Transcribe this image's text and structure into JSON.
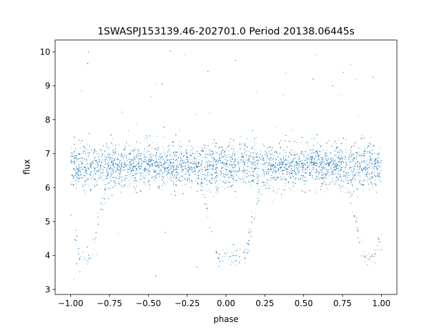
{
  "chart_data": {
    "type": "scatter",
    "title": "1SWASPJ153139.46-202701.0 Period 20138.06445s",
    "xlabel": "phase",
    "ylabel": "flux",
    "xlim": [
      -1.1,
      1.1
    ],
    "ylim": [
      2.85,
      10.35
    ],
    "xticks": [
      -1.0,
      -0.75,
      -0.5,
      -0.25,
      0.0,
      0.25,
      0.5,
      0.75,
      1.0
    ],
    "xtick_labels": [
      "−1.00",
      "−0.75",
      "−0.50",
      "−0.25",
      "0.00",
      "0.25",
      "0.50",
      "0.75",
      "1.00"
    ],
    "yticks": [
      3,
      4,
      5,
      6,
      7,
      8,
      9,
      10
    ],
    "ytick_labels": [
      "3",
      "4",
      "5",
      "6",
      "7",
      "8",
      "9",
      "10"
    ],
    "grid": false,
    "legend": "none",
    "marker_color": "#1f77b4",
    "baseline": {
      "flux_mean": 6.65,
      "flux_spread": 0.32,
      "phase_range": [
        -1.0,
        1.0
      ]
    },
    "eclipses": [
      {
        "phase_center": -0.91,
        "min_flux": 3.95,
        "width": 0.07,
        "ingress": 0.13
      },
      {
        "phase_center": 0.0,
        "min_flux": 3.95,
        "width": 0.12,
        "ingress": 0.12
      },
      {
        "phase_center": 0.09,
        "min_flux": 3.95,
        "width": 0.06,
        "ingress": 0.13
      },
      {
        "phase_center": 0.92,
        "min_flux": 3.95,
        "width": 0.07,
        "ingress": 0.13
      }
    ]
  }
}
